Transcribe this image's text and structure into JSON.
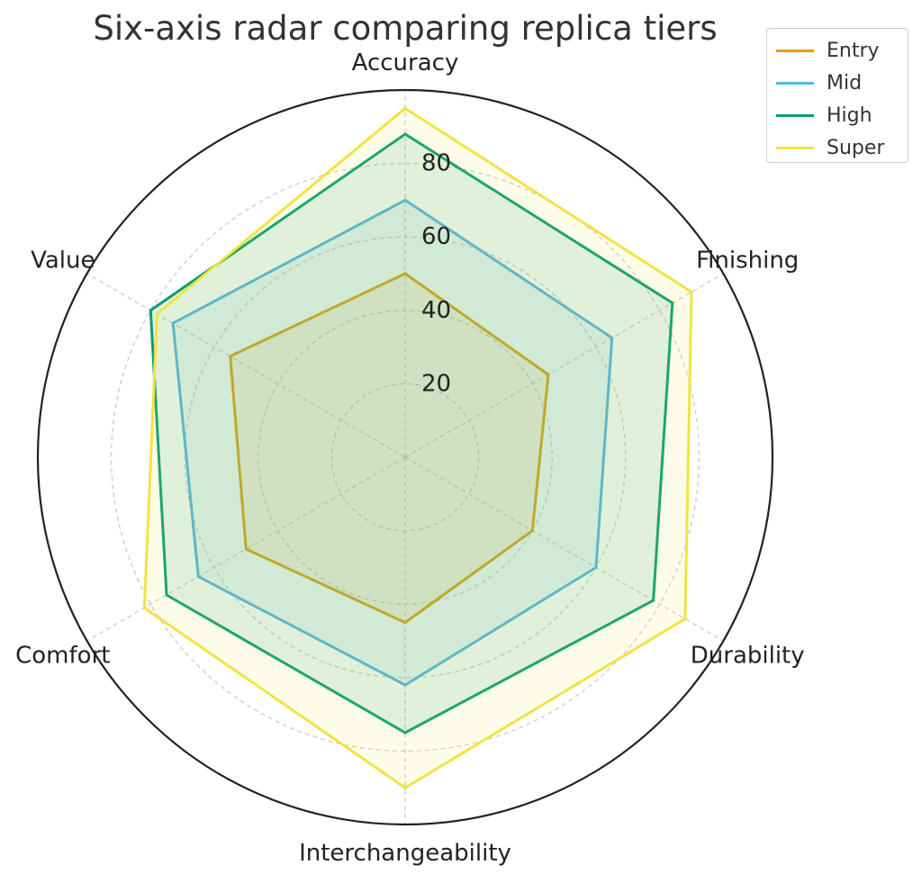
{
  "chart_data": {
    "type": "radar",
    "title": "Six-axis radar comparing replica tiers",
    "axes": [
      "Accuracy",
      "Finishing",
      "Durability",
      "Interchangeability",
      "Comfort",
      "Value"
    ],
    "radial_ticks": [
      "20",
      "40",
      "60",
      "80"
    ],
    "rlim": [
      0,
      100
    ],
    "grid": true,
    "legend_position": "top-right",
    "series": [
      {
        "name": "Entry",
        "color": "#E69F00",
        "values": [
          50,
          45,
          40,
          45,
          50,
          55
        ]
      },
      {
        "name": "Mid",
        "color": "#56B4E9",
        "values": [
          70,
          65,
          60,
          62,
          65,
          73
        ]
      },
      {
        "name": "High",
        "color": "#009E73",
        "values": [
          88,
          84,
          78,
          75,
          75,
          80
        ]
      },
      {
        "name": "Super",
        "color": "#F0E442",
        "values": [
          95,
          90,
          88,
          90,
          82,
          78
        ]
      }
    ]
  }
}
